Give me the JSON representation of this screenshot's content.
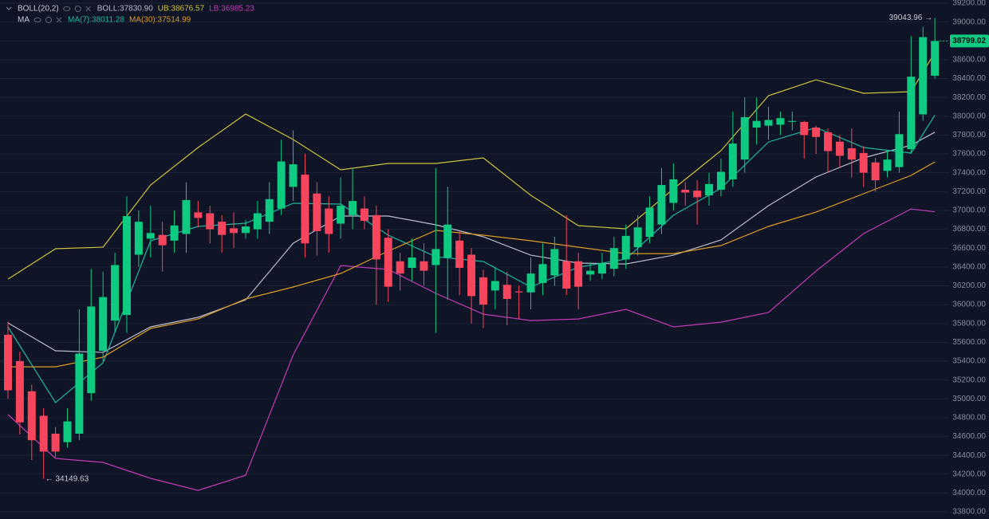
{
  "chart_data": {
    "type": "candlestick",
    "legend": [
      {
        "title": "BOLL(20,2)",
        "items": [
          "BOLL:37830.90",
          "UB:38676.57",
          "LB:36985.23"
        ]
      },
      {
        "title": "MA",
        "items": [
          "MA(7):38011.28",
          "MA(30):37514.99"
        ]
      }
    ],
    "up_color": "#0ecb81",
    "down_color": "#f6465d",
    "xlim": [
      -0.67,
      79.2
    ],
    "ylim": [
      33724,
      39234
    ],
    "grid": true,
    "yticks": [
      {
        "value": 33800,
        "label": "33800.00"
      },
      {
        "value": 34000,
        "label": "34000.00"
      },
      {
        "value": 34200,
        "label": "34200.00"
      },
      {
        "value": 34400,
        "label": "34400.00"
      },
      {
        "value": 34600,
        "label": "34600.00"
      },
      {
        "value": 34800,
        "label": "34800.00"
      },
      {
        "value": 35000,
        "label": "35000.00"
      },
      {
        "value": 35200,
        "label": "35200.00"
      },
      {
        "value": 35400,
        "label": "35400.00"
      },
      {
        "value": 35600,
        "label": "35600.00"
      },
      {
        "value": 35800,
        "label": "35800.00"
      },
      {
        "value": 36000,
        "label": "36000.00"
      },
      {
        "value": 36200,
        "label": "36200.00"
      },
      {
        "value": 36400,
        "label": "36400.00"
      },
      {
        "value": 36600,
        "label": "36600.00"
      },
      {
        "value": 36800,
        "label": "36800.00"
      },
      {
        "value": 37000,
        "label": "37000.00"
      },
      {
        "value": 37200,
        "label": "37200.00"
      },
      {
        "value": 37400,
        "label": "37400.00"
      },
      {
        "value": 37600,
        "label": "37600.00"
      },
      {
        "value": 37800,
        "label": "37800.00"
      },
      {
        "value": 38000,
        "label": "38000.00"
      },
      {
        "value": 38200,
        "label": "38200.00"
      },
      {
        "value": 38400,
        "label": "38400.00"
      },
      {
        "value": 38600,
        "label": "38600.00"
      },
      {
        "value": 38800,
        "label": "38800.00"
      },
      {
        "value": 39000,
        "label": "39000.00"
      },
      {
        "value": 39200,
        "label": "39200.00"
      }
    ],
    "open": [
      35680,
      35400,
      35080,
      34820,
      34630,
      34540,
      34630,
      35060,
      35510,
      35830,
      35890,
      36530,
      36700,
      36740,
      36680,
      36750,
      36980,
      36970,
      36880,
      36810,
      36760,
      36800,
      36880,
      37020,
      37250,
      37380,
      37180,
      37020,
      36860,
      36950,
      37020,
      36950,
      36710,
      36460,
      36390,
      36460,
      36420,
      36500,
      36680,
      36530,
      36290,
      36150,
      36210,
      36140,
      36130,
      36230,
      36310,
      36460,
      36460,
      36320,
      36330,
      36380,
      36480,
      36610,
      36720,
      36850,
      37080,
      37220,
      37210,
      37160,
      37220,
      37330,
      37540,
      37880,
      37900,
      37910,
      37940,
      37940,
      37880,
      37830,
      37730,
      37660,
      37610,
      37510,
      37420,
      37460,
      37650,
      38020,
      38430
    ],
    "high": [
      35820,
      35500,
      35150,
      34900,
      34700,
      34900,
      35950,
      36380,
      36350,
      36550,
      37150,
      37000,
      37050,
      36880,
      37000,
      37300,
      37100,
      37050,
      36950,
      36980,
      36900,
      37100,
      37300,
      37750,
      37850,
      37600,
      37300,
      37150,
      37350,
      37450,
      37150,
      37050,
      36800,
      36550,
      36700,
      36650,
      37450,
      37250,
      36780,
      36600,
      36370,
      36400,
      36350,
      36200,
      36500,
      36650,
      36720,
      36950,
      36550,
      36450,
      36550,
      36720,
      36850,
      36950,
      37150,
      37450,
      37500,
      37300,
      37320,
      37400,
      37550,
      38050,
      38200,
      38200,
      38100,
      38050,
      38050,
      37950,
      37900,
      37870,
      37800,
      37870,
      37680,
      37560,
      37640,
      38050,
      38850,
      38950,
      39043.96
    ],
    "low": [
      35000,
      34620,
      34350,
      34149.63,
      34380,
      34480,
      34560,
      34980,
      35400,
      35700,
      35700,
      36400,
      36500,
      36350,
      36550,
      36550,
      36820,
      36650,
      36550,
      36600,
      36700,
      36700,
      36750,
      36950,
      37100,
      36500,
      36520,
      36550,
      36700,
      36800,
      36800,
      36000,
      36030,
      36150,
      36250,
      36200,
      35700,
      36050,
      36100,
      35800,
      35750,
      35950,
      35780,
      35850,
      35950,
      36100,
      36200,
      36100,
      35950,
      36250,
      36270,
      36300,
      36380,
      36520,
      36650,
      36750,
      37000,
      37050,
      36850,
      37050,
      37150,
      37250,
      37400,
      37700,
      37750,
      37800,
      37850,
      37550,
      37600,
      37400,
      37450,
      37350,
      37250,
      37200,
      37350,
      37400,
      37600,
      37950,
      38400
    ],
    "close": [
      35090,
      34750,
      34560,
      34440,
      34440,
      34760,
      35480,
      35980,
      36080,
      36420,
      36940,
      36880,
      36760,
      36630,
      36840,
      37110,
      36920,
      36800,
      36740,
      36760,
      36830,
      36970,
      37120,
      37520,
      37490,
      36650,
      36780,
      36750,
      37050,
      37100,
      36890,
      36480,
      36190,
      36330,
      36500,
      36360,
      36590,
      36850,
      36390,
      36090,
      36000,
      36250,
      36060,
      36130,
      36330,
      36430,
      36590,
      36170,
      36190,
      36360,
      36440,
      36600,
      36730,
      36820,
      37030,
      37270,
      37330,
      37190,
      37140,
      37280,
      37410,
      37710,
      37990,
      37950,
      37960,
      37980,
      37950,
      37800,
      37780,
      37630,
      37580,
      37540,
      37400,
      37320,
      37540,
      37810,
      38420,
      38840,
      38799.02
    ],
    "last_price": 38799.02,
    "high_marker": {
      "value": 39043.96,
      "label": "39043.96 →"
    },
    "low_marker": {
      "value": 34149.63,
      "label": "← 34149.63"
    },
    "lines": [
      {
        "name": "UB",
        "color": "#cfc23a",
        "x": [
          0,
          4,
          8,
          12,
          16,
          20,
          24,
          28,
          32,
          36,
          40,
          44,
          48,
          52,
          56,
          60,
          64,
          68,
          72,
          76,
          78
        ],
        "values": [
          36271,
          36593,
          36610,
          37270,
          37668,
          38024,
          37753,
          37431,
          37499,
          37499,
          37558,
          37160,
          36839,
          36805,
          37228,
          37634,
          38218,
          38387,
          38244,
          38261,
          38676.57
        ]
      },
      {
        "name": "LB",
        "color": "#c23bb4",
        "x": [
          0,
          4,
          8,
          12,
          16,
          20,
          24,
          28,
          32,
          36,
          40,
          44,
          48,
          52,
          56,
          60,
          64,
          68,
          72,
          76,
          78
        ],
        "values": [
          34833,
          34367,
          34325,
          34156,
          34028,
          34189,
          35467,
          36415,
          36373,
          36119,
          35899,
          35831,
          35848,
          35950,
          35764,
          35814,
          35916,
          36356,
          36754,
          37016,
          36985.23
        ]
      },
      {
        "name": "BOLL",
        "color": "#b9bccb",
        "x": [
          0,
          4,
          8,
          12,
          16,
          20,
          24,
          28,
          32,
          36,
          40,
          44,
          48,
          52,
          56,
          60,
          64,
          68,
          72,
          76,
          78
        ],
        "values": [
          35806,
          35510,
          35493,
          35764,
          35865,
          36051,
          36652,
          36940,
          36940,
          36847,
          36720,
          36525,
          36441,
          36432,
          36525,
          36686,
          37050,
          37355,
          37558,
          37693,
          37830.9
        ]
      },
      {
        "name": "MA(7)",
        "color": "#1fb7a0",
        "x": [
          0,
          4,
          8,
          12,
          16,
          20,
          24,
          28,
          32,
          36,
          40,
          44,
          48,
          52,
          56,
          60,
          64,
          68,
          72,
          76,
          78
        ],
        "values": [
          35764,
          34960,
          35383,
          36678,
          36830,
          36864,
          37076,
          37067,
          36737,
          36508,
          36458,
          36187,
          36398,
          36483,
          36949,
          37236,
          37727,
          37880,
          37668,
          37609,
          38011.28
        ]
      },
      {
        "name": "MA(30)",
        "color": "#dc9d22",
        "x": [
          0,
          4,
          8,
          12,
          16,
          20,
          24,
          28,
          32,
          36,
          40,
          44,
          48,
          52,
          56,
          60,
          64,
          68,
          72,
          76,
          78
        ],
        "values": [
          35340,
          35340,
          35442,
          35747,
          35848,
          36060,
          36187,
          36331,
          36568,
          36788,
          36737,
          36678,
          36610,
          36542,
          36542,
          36627,
          36830,
          36982,
          37177,
          37372,
          37514.99
        ]
      }
    ]
  }
}
